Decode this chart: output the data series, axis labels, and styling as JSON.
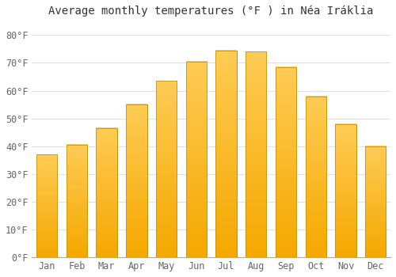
{
  "months": [
    "Jan",
    "Feb",
    "Mar",
    "Apr",
    "May",
    "Jun",
    "Jul",
    "Aug",
    "Sep",
    "Oct",
    "Nov",
    "Dec"
  ],
  "values": [
    37,
    40.5,
    46.5,
    55,
    63.5,
    70.5,
    74.5,
    74,
    68.5,
    58,
    48,
    40
  ],
  "bar_color_top": "#FFB733",
  "bar_color_bottom": "#F5A800",
  "bar_edge_color": "#C8930A",
  "title": "Average monthly temperatures (°F ) in Néa Iráklia",
  "ylabel_ticks": [
    "0°F",
    "10°F",
    "20°F",
    "30°F",
    "40°F",
    "50°F",
    "60°F",
    "70°F",
    "80°F"
  ],
  "ytick_values": [
    0,
    10,
    20,
    30,
    40,
    50,
    60,
    70,
    80
  ],
  "ylim": [
    0,
    85
  ],
  "background_color": "#FFFFFF",
  "grid_color": "#E0E0E0",
  "title_fontsize": 10,
  "tick_fontsize": 8.5,
  "bar_width": 0.7
}
